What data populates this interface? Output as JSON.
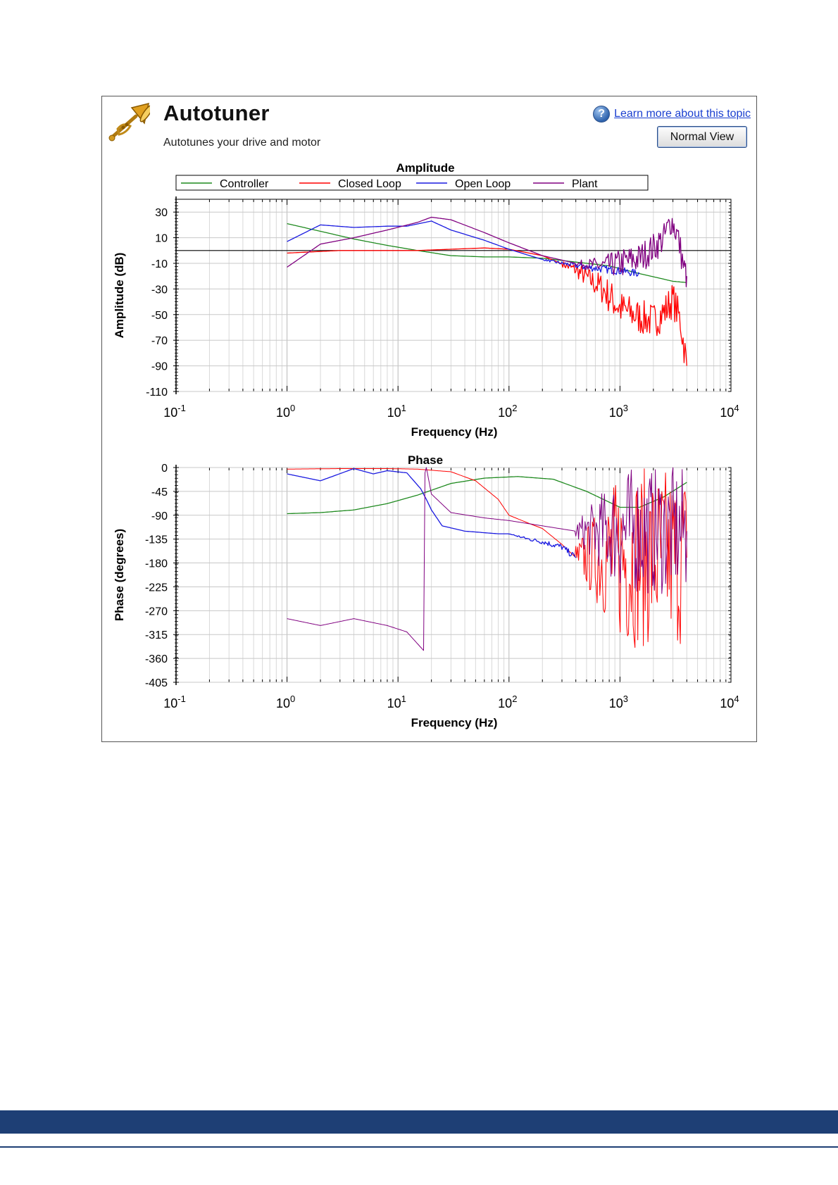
{
  "window": {
    "title": "Autotuner",
    "subtitle": "Autotunes your drive and motor",
    "help_link": "Learn more about this topic",
    "help_icon": "?",
    "normal_view_button": "Normal View"
  },
  "icons": {
    "app_icon": "trumpet-icon",
    "help_icon": "help-question-icon"
  },
  "colors": {
    "controller": "#1f8a1f",
    "closed_loop": "#ff0000",
    "open_loop": "#1a1ae0",
    "plant": "#800080",
    "footer": "#1e3f75"
  },
  "chart_data": [
    {
      "type": "line",
      "title": "Amplitude",
      "xlabel": "Frequency (Hz)",
      "ylabel": "Amplitude (dB)",
      "x_scale": "log",
      "xlim": [
        0.1,
        10000
      ],
      "ylim": [
        -110,
        40
      ],
      "yticks": [
        30,
        10,
        -10,
        -30,
        -50,
        -70,
        -90,
        -110
      ],
      "xticks": [
        {
          "base": "10",
          "exp": "-1"
        },
        {
          "base": "10",
          "exp": "0"
        },
        {
          "base": "10",
          "exp": "1"
        },
        {
          "base": "10",
          "exp": "2"
        },
        {
          "base": "10",
          "exp": "3"
        },
        {
          "base": "10",
          "exp": "4"
        }
      ],
      "grid": true,
      "legend": "top",
      "reference_line": 0,
      "series": [
        {
          "name": "Controller",
          "color": "#1f8a1f",
          "x": [
            1,
            2,
            4,
            8,
            15,
            30,
            60,
            100,
            200,
            400,
            800,
            1500,
            3000,
            4000
          ],
          "y": [
            21,
            15,
            9,
            4,
            0,
            -4,
            -5,
            -5,
            -6,
            -9,
            -12,
            -18,
            -24,
            -25
          ]
        },
        {
          "name": "Closed Loop",
          "color": "#ff0000",
          "x": [
            1,
            3,
            8,
            15,
            30,
            60,
            100,
            200,
            400,
            700,
            1000,
            1500,
            2000,
            2500,
            3000,
            3500,
            4000
          ],
          "y": [
            -2,
            0,
            0,
            0,
            1,
            2,
            1,
            -4,
            -15,
            -30,
            -45,
            -52,
            -55,
            -48,
            -38,
            -55,
            -90
          ],
          "noise": 14,
          "noise_from": 300
        },
        {
          "name": "Open Loop",
          "color": "#1a1ae0",
          "x": [
            1,
            2,
            4,
            8,
            12,
            20,
            30,
            60,
            100,
            200,
            300,
            500,
            800,
            1000,
            1500
          ],
          "y": [
            7,
            20,
            18,
            19,
            19,
            23,
            16,
            8,
            1,
            -7,
            -10,
            -13,
            -15,
            -16,
            -18
          ],
          "noise": 3,
          "noise_from": 200
        },
        {
          "name": "Plant",
          "color": "#800080",
          "x": [
            1,
            2,
            4,
            8,
            15,
            20,
            30,
            60,
            100,
            200,
            400,
            700,
            1000,
            1500,
            2000,
            2500,
            2900,
            3300,
            3800,
            4000
          ],
          "y": [
            -13,
            5,
            10,
            16,
            22,
            26,
            24,
            14,
            6,
            -4,
            -10,
            -12,
            -10,
            -6,
            2,
            10,
            24,
            12,
            -15,
            -20
          ],
          "noise": 12,
          "noise_from": 400
        }
      ]
    },
    {
      "type": "line",
      "title": "Phase",
      "xlabel": "Frequency (Hz)",
      "ylabel": "Phase (degrees)",
      "x_scale": "log",
      "xlim": [
        0.1,
        10000
      ],
      "ylim": [
        -405,
        0
      ],
      "yticks": [
        0,
        -45,
        -90,
        -135,
        -180,
        -225,
        -270,
        -315,
        -360,
        -405
      ],
      "xticks": [
        {
          "base": "10",
          "exp": "-1"
        },
        {
          "base": "10",
          "exp": "0"
        },
        {
          "base": "10",
          "exp": "1"
        },
        {
          "base": "10",
          "exp": "2"
        },
        {
          "base": "10",
          "exp": "3"
        },
        {
          "base": "10",
          "exp": "4"
        }
      ],
      "grid": true,
      "series": [
        {
          "name": "Controller",
          "color": "#1f8a1f",
          "x": [
            1,
            2,
            4,
            8,
            15,
            30,
            60,
            120,
            250,
            500,
            1000,
            1500,
            2500,
            4000
          ],
          "y": [
            -87,
            -85,
            -80,
            -68,
            -52,
            -30,
            -20,
            -17,
            -22,
            -45,
            -75,
            -75,
            -55,
            -28
          ]
        },
        {
          "name": "Closed Loop",
          "color": "#ff0000",
          "x": [
            1,
            3,
            8,
            15,
            30,
            50,
            80,
            100,
            150,
            200,
            300,
            400,
            4000
          ],
          "y": [
            -3,
            -2,
            -2,
            -3,
            -8,
            -25,
            -60,
            -90,
            -105,
            -115,
            -145,
            -170,
            -170
          ],
          "noise": 170,
          "noise_from": 400
        },
        {
          "name": "Open Loop",
          "color": "#1a1ae0",
          "x": [
            1,
            2,
            4,
            6,
            8,
            12,
            16,
            18,
            20,
            25,
            40,
            80,
            100,
            150,
            200,
            300,
            400
          ],
          "y": [
            -12,
            -25,
            -2,
            -12,
            -6,
            -10,
            -40,
            -60,
            -80,
            -110,
            -120,
            -125,
            -125,
            -135,
            -140,
            -150,
            -170
          ],
          "noise": 6,
          "noise_from": 100
        },
        {
          "name": "Plant",
          "color": "#800080",
          "x": [
            1,
            2,
            4,
            8,
            12,
            17,
            17.5,
            18,
            20,
            30,
            60,
            100,
            200,
            400,
            4000
          ],
          "y": [
            -285,
            -298,
            -285,
            -298,
            -310,
            -345,
            -10,
            0,
            -50,
            -85,
            -95,
            -100,
            -110,
            -120,
            -120
          ],
          "noise": 120,
          "noise_from": 400
        }
      ]
    }
  ]
}
